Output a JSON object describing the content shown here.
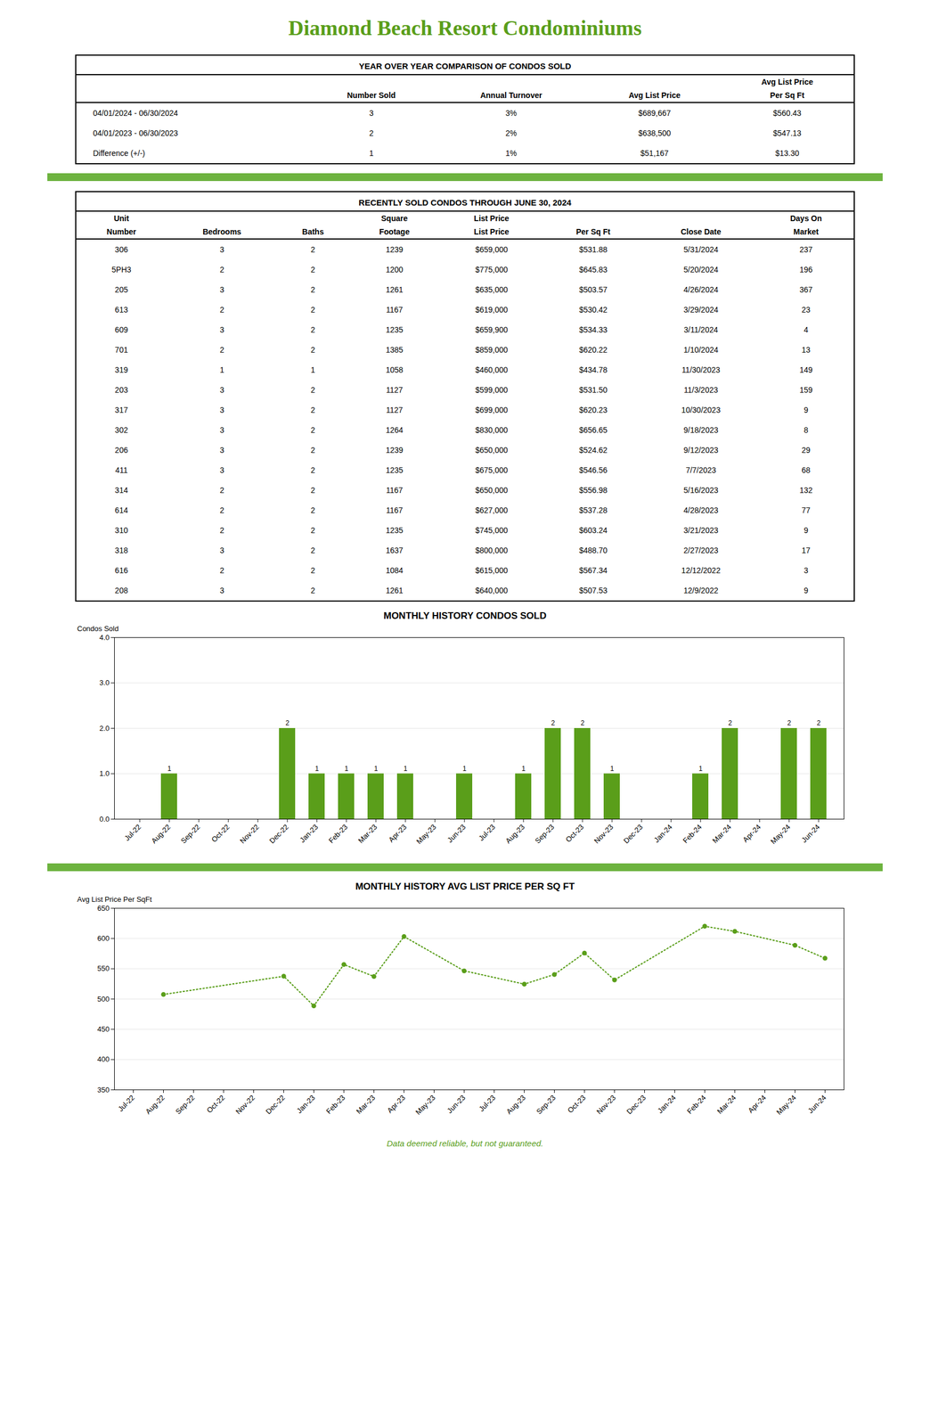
{
  "title": "Diamond Beach Resort Condominiums",
  "footer": "Data deemed reliable, but not guaranteed.",
  "chart_data": [
    {
      "type": "table",
      "title": "YEAR OVER YEAR COMPARISON OF CONDOS SOLD",
      "header_rows": [
        [
          null,
          null,
          null,
          null,
          "Avg List Price"
        ],
        [
          null,
          "Number Sold",
          "Annual Turnover",
          "Avg List Price",
          "Per Sq Ft"
        ]
      ],
      "rows": [
        [
          "04/01/2024 - 06/30/2024",
          "3",
          "3%",
          "$689,667",
          "$560.43"
        ],
        [
          "04/01/2023 - 06/30/2023",
          "2",
          "2%",
          "$638,500",
          "$547.13"
        ],
        [
          "Difference (+/-)",
          "1",
          "1%",
          "$51,167",
          "$13.30"
        ]
      ]
    },
    {
      "type": "table",
      "title": "RECENTLY SOLD CONDOS THROUGH JUNE 30, 2024",
      "header_rows": [
        [
          "Unit",
          null,
          null,
          "Square",
          "List Price",
          null,
          null,
          "Days On"
        ],
        [
          "Number",
          "Bedrooms",
          "Baths",
          "Footage",
          "List Price",
          "Per Sq Ft",
          "Close Date",
          "Market"
        ]
      ],
      "rows": [
        [
          "306",
          "3",
          "2",
          "1239",
          "$659,000",
          "$531.88",
          "5/31/2024",
          "237"
        ],
        [
          "5PH3",
          "2",
          "2",
          "1200",
          "$775,000",
          "$645.83",
          "5/20/2024",
          "196"
        ],
        [
          "205",
          "3",
          "2",
          "1261",
          "$635,000",
          "$503.57",
          "4/26/2024",
          "367"
        ],
        [
          "613",
          "2",
          "2",
          "1167",
          "$619,000",
          "$530.42",
          "3/29/2024",
          "23"
        ],
        [
          "609",
          "3",
          "2",
          "1235",
          "$659,900",
          "$534.33",
          "3/11/2024",
          "4"
        ],
        [
          "701",
          "2",
          "2",
          "1385",
          "$859,000",
          "$620.22",
          "1/10/2024",
          "13"
        ],
        [
          "319",
          "1",
          "1",
          "1058",
          "$460,000",
          "$434.78",
          "11/30/2023",
          "149"
        ],
        [
          "203",
          "3",
          "2",
          "1127",
          "$599,000",
          "$531.50",
          "11/3/2023",
          "159"
        ],
        [
          "317",
          "3",
          "2",
          "1127",
          "$699,000",
          "$620.23",
          "10/30/2023",
          "9"
        ],
        [
          "302",
          "3",
          "2",
          "1264",
          "$830,000",
          "$656.65",
          "9/18/2023",
          "8"
        ],
        [
          "206",
          "3",
          "2",
          "1239",
          "$650,000",
          "$524.62",
          "9/12/2023",
          "29"
        ],
        [
          "411",
          "3",
          "2",
          "1235",
          "$675,000",
          "$546.56",
          "7/7/2023",
          "68"
        ],
        [
          "314",
          "2",
          "2",
          "1167",
          "$650,000",
          "$556.98",
          "5/16/2023",
          "132"
        ],
        [
          "614",
          "2",
          "2",
          "1167",
          "$627,000",
          "$537.28",
          "4/28/2023",
          "77"
        ],
        [
          "310",
          "2",
          "2",
          "1235",
          "$745,000",
          "$603.24",
          "3/21/2023",
          "9"
        ],
        [
          "318",
          "3",
          "2",
          "1637",
          "$800,000",
          "$488.70",
          "2/27/2023",
          "17"
        ],
        [
          "616",
          "2",
          "2",
          "1084",
          "$615,000",
          "$567.34",
          "12/12/2022",
          "3"
        ],
        [
          "208",
          "3",
          "2",
          "1261",
          "$640,000",
          "$507.53",
          "12/9/2022",
          "9"
        ]
      ]
    },
    {
      "type": "bar",
      "title": "MONTHLY HISTORY CONDOS SOLD",
      "categories": [
        "Jul-22",
        "Aug-22",
        "Sep-22",
        "Oct-22",
        "Nov-22",
        "Dec-22",
        "Jan-23",
        "Feb-23",
        "Mar-23",
        "Apr-23",
        "May-23",
        "Jun-23",
        "Jul-23",
        "Aug-23",
        "Sep-23",
        "Oct-23",
        "Nov-23",
        "Dec-23",
        "Jan-24",
        "Feb-24",
        "Mar-24",
        "Apr-24",
        "May-24",
        "Jun-24"
      ],
      "values": [
        0,
        1,
        0,
        0,
        0,
        2,
        1,
        1,
        1,
        1,
        0,
        1,
        0,
        1,
        2,
        2,
        1,
        0,
        0,
        1,
        2,
        0,
        2,
        2
      ],
      "data_labels": true,
      "value_labels": [
        null,
        "1",
        null,
        null,
        null,
        "2",
        "1",
        "1",
        "1",
        "1",
        null,
        "1",
        null,
        "1",
        "2",
        "2",
        "1",
        null,
        null,
        "1",
        "2",
        null,
        "2",
        "2"
      ],
      "color": "#5a9e1a",
      "ylabel": "Condos Sold",
      "ylim": [
        0,
        4
      ],
      "yticks": [
        0,
        1,
        2,
        3,
        4
      ],
      "grid": true
    },
    {
      "type": "line",
      "title": "MONTHLY HISTORY AVG LIST PRICE PER SQ FT",
      "categories": [
        "Jul-22",
        "Aug-22",
        "Sep-22",
        "Oct-22",
        "Nov-22",
        "Dec-22",
        "Jan-23",
        "Feb-23",
        "Mar-23",
        "Apr-23",
        "May-23",
        "Jun-23",
        "Jul-23",
        "Aug-23",
        "Sep-23",
        "Oct-23",
        "Nov-23",
        "Dec-23",
        "Jan-24",
        "Feb-24",
        "Mar-24",
        "Apr-24",
        "May-24",
        "Jun-24"
      ],
      "values": [
        null,
        507.53,
        null,
        null,
        null,
        537.64,
        488.7,
        556.98,
        537.28,
        603.24,
        null,
        546.56,
        null,
        524.62,
        540.59,
        575.94,
        531.5,
        null,
        null,
        620.22,
        611.78,
        null,
        588.855,
        567.34
      ],
      "color": "#5a9e1a",
      "marker": "circle",
      "line_style": "dotted",
      "ylabel": "Avg List Price Per SqFt",
      "ylim": [
        350,
        650
      ],
      "yticks": [
        350,
        400,
        450,
        500,
        550,
        600,
        650
      ],
      "grid": true
    }
  ]
}
